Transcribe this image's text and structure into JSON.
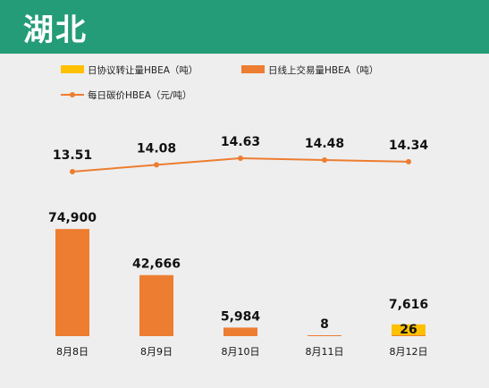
{
  "header": {
    "title": "湖北"
  },
  "colors": {
    "header_bg": "#249c77",
    "agreement": "#ffc000",
    "online": "#ed7d31",
    "price_line": "#ed7d31"
  },
  "chart_data": {
    "type": "bar+line",
    "categories": [
      "8月8日",
      "8月9日",
      "8月10日",
      "8月11日",
      "8月12日"
    ],
    "series": [
      {
        "name": "日协议转让量HBEA（吨）",
        "kind": "bar",
        "color": "#ffc000",
        "values": [
          0,
          0,
          0,
          0,
          7616
        ],
        "labels": [
          "",
          "",
          "",
          "",
          "7,616"
        ]
      },
      {
        "name": "日线上交易量HBEA（吨）",
        "kind": "bar",
        "color": "#ed7d31",
        "values": [
          74900,
          42666,
          5984,
          8,
          26
        ],
        "labels": [
          "74,900",
          "42,666",
          "5,984",
          "8",
          "26"
        ]
      },
      {
        "name": "每日碳价HBEA（元/吨）",
        "kind": "line",
        "color": "#ed7d31",
        "values": [
          13.51,
          14.08,
          14.63,
          14.48,
          14.34
        ],
        "labels": [
          "13.51",
          "14.08",
          "14.63",
          "14.48",
          "14.34"
        ]
      }
    ],
    "legend": "top",
    "grid": false
  }
}
